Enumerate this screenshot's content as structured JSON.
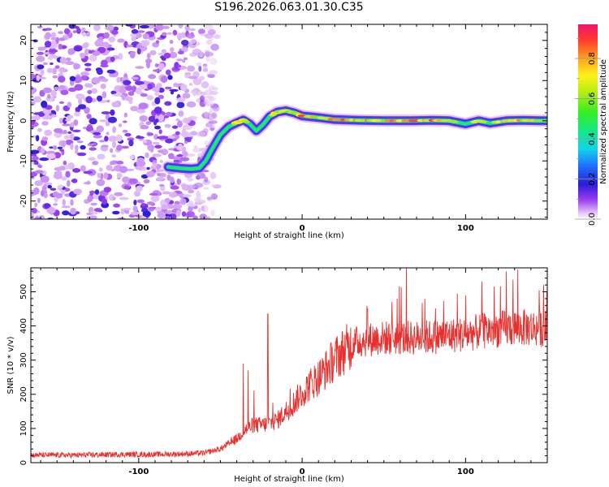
{
  "title": "S196.2026.063.01.30.C35",
  "chart_data": [
    {
      "type": "heatmap",
      "id": "spectrogram",
      "xlabel": "Height of straight line (km)",
      "ylabel": "Frequency (Hz)",
      "xlim": [
        -166,
        150
      ],
      "ylim": [
        -24.5,
        24
      ],
      "xticks": [
        -100,
        0,
        100
      ],
      "yticks": [
        -20,
        -10,
        0,
        10,
        20
      ],
      "colorbar": {
        "label": "Normalized spectral amplitude",
        "range": [
          0,
          0.97
        ],
        "ticks": [
          0.0,
          0.2,
          0.4,
          0.6,
          0.8
        ]
      },
      "noise_region_x": [
        -166,
        -58
      ],
      "ridge": [
        {
          "x": -82,
          "y": -11.5,
          "a": 0.35
        },
        {
          "x": -75,
          "y": -11.8,
          "a": 0.45
        },
        {
          "x": -68,
          "y": -12.0,
          "a": 0.4
        },
        {
          "x": -63,
          "y": -11.8,
          "a": 0.45
        },
        {
          "x": -59,
          "y": -10.0,
          "a": 0.45
        },
        {
          "x": -55,
          "y": -7.0,
          "a": 0.5
        },
        {
          "x": -50,
          "y": -3.5,
          "a": 0.5
        },
        {
          "x": -45,
          "y": -1.5,
          "a": 0.55
        },
        {
          "x": -40,
          "y": -0.5,
          "a": 0.7
        },
        {
          "x": -36,
          "y": 0.2,
          "a": 0.75
        },
        {
          "x": -32,
          "y": -0.8,
          "a": 0.55
        },
        {
          "x": -28,
          "y": -2.5,
          "a": 0.5
        },
        {
          "x": -24,
          "y": -1.0,
          "a": 0.55
        },
        {
          "x": -20,
          "y": 1.0,
          "a": 0.6
        },
        {
          "x": -15,
          "y": 2.2,
          "a": 0.7
        },
        {
          "x": -10,
          "y": 2.5,
          "a": 0.8
        },
        {
          "x": -5,
          "y": 2.0,
          "a": 0.75
        },
        {
          "x": 0,
          "y": 1.2,
          "a": 0.85
        },
        {
          "x": 10,
          "y": 0.8,
          "a": 0.7
        },
        {
          "x": 20,
          "y": 0.3,
          "a": 0.9
        },
        {
          "x": 35,
          "y": 0.1,
          "a": 0.85
        },
        {
          "x": 50,
          "y": 0.0,
          "a": 0.8
        },
        {
          "x": 65,
          "y": 0.0,
          "a": 0.85
        },
        {
          "x": 80,
          "y": 0.1,
          "a": 0.85
        },
        {
          "x": 90,
          "y": 0.0,
          "a": 0.75
        },
        {
          "x": 100,
          "y": -0.8,
          "a": 0.55
        },
        {
          "x": 108,
          "y": 0.0,
          "a": 0.7
        },
        {
          "x": 115,
          "y": -0.6,
          "a": 0.6
        },
        {
          "x": 125,
          "y": 0.0,
          "a": 0.75
        },
        {
          "x": 135,
          "y": 0.1,
          "a": 0.8
        },
        {
          "x": 145,
          "y": 0.0,
          "a": 0.7
        },
        {
          "x": 150,
          "y": 0.0,
          "a": 0.65
        }
      ]
    },
    {
      "type": "line",
      "id": "snr",
      "xlabel": "Height of straight line (km)",
      "ylabel": "SNR (10 * v/v)",
      "xlim": [
        -166,
        150
      ],
      "ylim": [
        0,
        570
      ],
      "xticks": [
        -100,
        0,
        100
      ],
      "yticks": [
        0,
        100,
        200,
        300,
        400,
        500
      ],
      "color": "#e8302e",
      "x": [
        -166,
        -140,
        -110,
        -90,
        -70,
        -60,
        -50,
        -45,
        -40,
        -35,
        -30,
        -25,
        -20,
        -15,
        -10,
        -5,
        0,
        5,
        10,
        15,
        20,
        25,
        30,
        35,
        40,
        50,
        60,
        70,
        80,
        90,
        100,
        110,
        120,
        130,
        140,
        150
      ],
      "y": [
        22,
        22,
        24,
        24,
        26,
        28,
        40,
        55,
        70,
        95,
        110,
        110,
        115,
        125,
        150,
        175,
        205,
        230,
        250,
        275,
        305,
        325,
        345,
        355,
        360,
        365,
        365,
        365,
        368,
        372,
        375,
        385,
        390,
        395,
        395,
        392
      ],
      "spikes": [
        {
          "x": -21,
          "y": 435
        },
        {
          "x": -36,
          "y": 290
        },
        {
          "x": -33,
          "y": 270
        },
        {
          "x": 40,
          "y": 450
        },
        {
          "x": 55,
          "y": 470
        },
        {
          "x": 75,
          "y": 480
        },
        {
          "x": 95,
          "y": 495
        },
        {
          "x": 110,
          "y": 530
        },
        {
          "x": 125,
          "y": 560
        },
        {
          "x": 132,
          "y": 565
        },
        {
          "x": 145,
          "y": 505
        }
      ]
    }
  ]
}
